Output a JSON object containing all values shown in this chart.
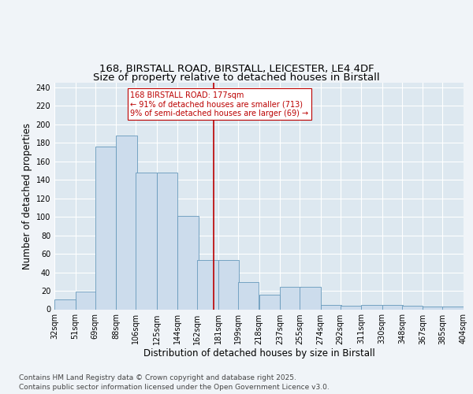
{
  "title_line1": "168, BIRSTALL ROAD, BIRSTALL, LEICESTER, LE4 4DF",
  "title_line2": "Size of property relative to detached houses in Birstall",
  "xlabel": "Distribution of detached houses by size in Birstall",
  "ylabel": "Number of detached properties",
  "bar_color": "#ccdcec",
  "bar_edge_color": "#6699bb",
  "bg_color": "#dde8f0",
  "grid_color": "#ffffff",
  "vline_color": "#bb0000",
  "vline_x": 177,
  "annotation_text": "168 BIRSTALL ROAD: 177sqm\n← 91% of detached houses are smaller (713)\n9% of semi-detached houses are larger (69) →",
  "annotation_box_color": "#ffffff",
  "annotation_text_color": "#bb0000",
  "bins_left": [
    32,
    51,
    69,
    88,
    106,
    125,
    144,
    162,
    181,
    199,
    218,
    237,
    255,
    274,
    292,
    311,
    330,
    348,
    367,
    385
  ],
  "bin_width": 19,
  "bar_heights": [
    11,
    19,
    176,
    188,
    148,
    148,
    101,
    53,
    53,
    29,
    16,
    24,
    24,
    5,
    4,
    5,
    5,
    4,
    3,
    3
  ],
  "ylim": [
    0,
    245
  ],
  "yticks": [
    0,
    20,
    40,
    60,
    80,
    100,
    120,
    140,
    160,
    180,
    200,
    220,
    240
  ],
  "xtick_labels": [
    "32sqm",
    "51sqm",
    "69sqm",
    "88sqm",
    "106sqm",
    "125sqm",
    "144sqm",
    "162sqm",
    "181sqm",
    "199sqm",
    "218sqm",
    "237sqm",
    "255sqm",
    "274sqm",
    "292sqm",
    "311sqm",
    "330sqm",
    "348sqm",
    "367sqm",
    "385sqm",
    "404sqm"
  ],
  "footer_text": "Contains HM Land Registry data © Crown copyright and database right 2025.\nContains public sector information licensed under the Open Government Licence v3.0.",
  "title_fontsize": 9.5,
  "subtitle_fontsize": 9.5,
  "ylabel_fontsize": 8.5,
  "xlabel_fontsize": 8.5,
  "tick_fontsize": 7,
  "annotation_fontsize": 7,
  "footer_fontsize": 6.5
}
